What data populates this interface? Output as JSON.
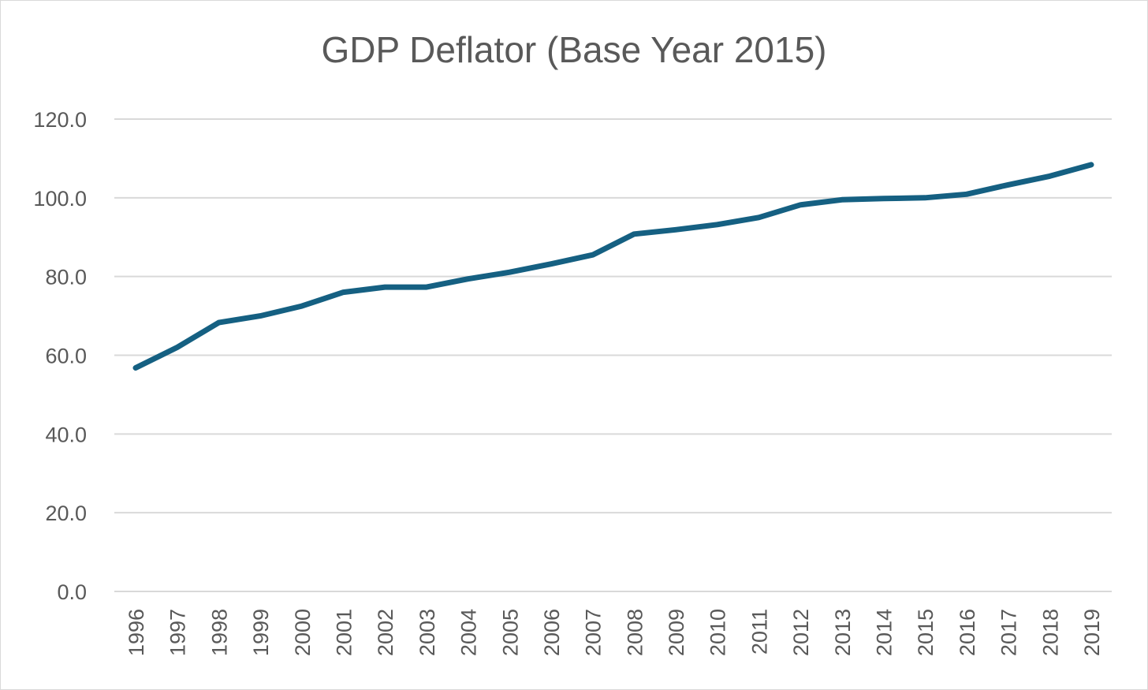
{
  "chart_data": {
    "type": "line",
    "title": "GDP Deflator (Base Year 2015)",
    "xlabel": "",
    "ylabel": "",
    "categories": [
      "1996",
      "1997",
      "1998",
      "1999",
      "2000",
      "2001",
      "2002",
      "2003",
      "2004",
      "2005",
      "2006",
      "2007",
      "2008",
      "2009",
      "2010",
      "2011",
      "2012",
      "2013",
      "2014",
      "2015",
      "2016",
      "2017",
      "2018",
      "2019"
    ],
    "series": [
      {
        "name": "GDP Deflator",
        "color": "#156082",
        "values": [
          56.8,
          62.0,
          68.3,
          70.0,
          72.5,
          76.0,
          77.3,
          77.3,
          79.4,
          81.1,
          83.2,
          85.5,
          90.8,
          91.9,
          93.2,
          95.0,
          98.2,
          99.5,
          99.8,
          100.0,
          100.9,
          103.3,
          105.5,
          108.4
        ]
      }
    ],
    "ylim": [
      0,
      120
    ],
    "y_ticks": [
      0,
      20,
      40,
      60,
      80,
      100,
      120
    ],
    "y_tick_labels": [
      "0.0",
      "20.0",
      "40.0",
      "60.0",
      "80.0",
      "100.0",
      "120.0"
    ],
    "grid": true,
    "gridline_color": "#d9d9d9",
    "axis_label_color": "#595959",
    "legend": "none"
  }
}
